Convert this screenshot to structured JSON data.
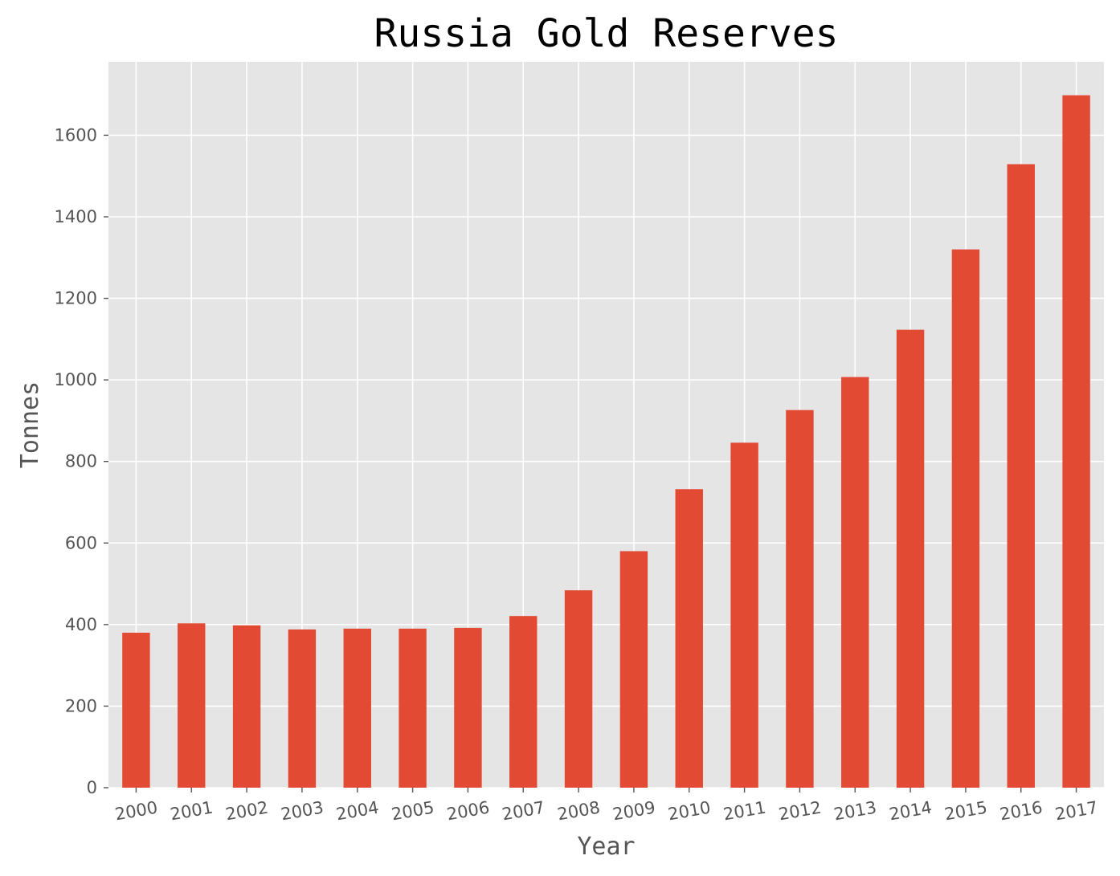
{
  "chart_data": {
    "type": "bar",
    "title": "Russia Gold Reserves",
    "xlabel": "Year",
    "ylabel": "Tonnes",
    "categories": [
      "2000",
      "2001",
      "2002",
      "2003",
      "2004",
      "2005",
      "2006",
      "2007",
      "2008",
      "2009",
      "2010",
      "2011",
      "2012",
      "2013",
      "2014",
      "2015",
      "2016",
      "2017"
    ],
    "series": [
      {
        "values": [
          380,
          403,
          398,
          388,
          390,
          390,
          392,
          421,
          484,
          580,
          732,
          846,
          926,
          1007,
          1123,
          1320,
          1529,
          1698
        ]
      }
    ],
    "ylim": [
      0,
      1780
    ],
    "yticks": [
      0,
      200,
      400,
      600,
      800,
      1000,
      1200,
      1400,
      1600
    ],
    "xtick_rotation": 10,
    "grid": true,
    "legend": "none",
    "colors": {
      "bar": "#E24A33",
      "plot_background": "#E5E5E5",
      "grid": "#FFFFFF",
      "tick_text": "#555555"
    }
  }
}
